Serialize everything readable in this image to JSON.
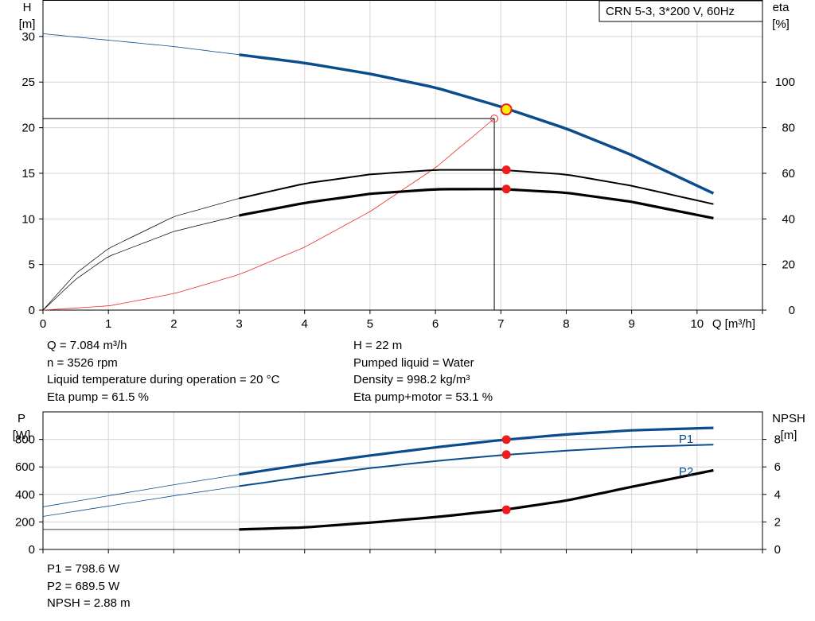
{
  "chart_data": [
    {
      "type": "line",
      "title": "CRN 5-3, 3*200 V, 60Hz",
      "xlabel": "Q [m³/h]",
      "ylabel_left": [
        "H",
        "[m]"
      ],
      "ylabel_right": [
        "eta",
        "[%]"
      ],
      "xlim": [
        0,
        11
      ],
      "ylim_left": [
        0,
        34
      ],
      "ylim_right": [
        0,
        136
      ],
      "x_ticks": [
        0,
        1,
        2,
        3,
        4,
        5,
        6,
        7,
        8,
        9,
        10
      ],
      "y_ticks_left": [
        0,
        5,
        10,
        15,
        20,
        25,
        30
      ],
      "y_ticks_right": [
        0,
        20,
        40,
        60,
        80,
        100
      ],
      "grid": true,
      "colors": {
        "head": "#0b4c8c",
        "eta": "#000000",
        "system": "#e8302a",
        "marker": "#ee1c1c",
        "duty_marker": "#ffee00"
      },
      "series": [
        {
          "axis": "left",
          "points": [
            [
              0,
              30.3
            ],
            [
              1,
              29.6
            ],
            [
              2,
              28.9
            ],
            [
              3,
              28.0
            ],
            [
              4,
              27.1
            ],
            [
              5,
              25.9
            ],
            [
              6,
              24.4
            ],
            [
              7,
              22.3
            ],
            [
              8,
              19.9
            ],
            [
              9,
              17.0
            ],
            [
              10.25,
              12.8
            ]
          ]
        },
        {
          "axis": "right",
          "points": [
            [
              0,
              0
            ],
            [
              0.5,
              16
            ],
            [
              1,
              27
            ],
            [
              2,
              41
            ],
            [
              3,
              49
            ],
            [
              4,
              55.5
            ],
            [
              5,
              59.5
            ],
            [
              6,
              61.5
            ],
            [
              7,
              61.5
            ],
            [
              8,
              59.5
            ],
            [
              9,
              54.5
            ],
            [
              10.25,
              46.5
            ]
          ]
        },
        {
          "axis": "right",
          "points": [
            [
              0,
              0
            ],
            [
              0.5,
              13.5
            ],
            [
              1,
              23.5
            ],
            [
              2,
              34.5
            ],
            [
              3,
              41.5
            ],
            [
              4,
              47
            ],
            [
              5,
              51
            ],
            [
              6,
              53
            ],
            [
              7,
              53.1
            ],
            [
              8,
              51.5
            ],
            [
              9,
              47.5
            ],
            [
              10.25,
              40.3
            ]
          ]
        },
        {
          "axis": "left",
          "points": [
            [
              0,
              0
            ],
            [
              1,
              0.45
            ],
            [
              2,
              1.8
            ],
            [
              3,
              3.9
            ],
            [
              4,
              6.9
            ],
            [
              5,
              10.8
            ],
            [
              6,
              15.6
            ],
            [
              6.9,
              21.0
            ]
          ]
        }
      ],
      "duty_point": {
        "q": 7.084,
        "h": 22
      },
      "requested_point": {
        "q": 6.9,
        "h": 21
      },
      "eta_points": [
        61.5,
        53.1
      ]
    },
    {
      "type": "line",
      "ylabel_left": [
        "P",
        "[W]"
      ],
      "ylabel_right": [
        "NPSH",
        "[m]"
      ],
      "xlim": [
        0,
        11
      ],
      "ylim_left": [
        0,
        1000
      ],
      "ylim_right": [
        0,
        10
      ],
      "y_ticks_left": [
        0,
        200,
        400,
        600,
        800
      ],
      "y_ticks_right": [
        0,
        2,
        4,
        6,
        8
      ],
      "grid": true,
      "series": [
        {
          "name": "P1",
          "axis": "left",
          "points": [
            [
              0,
              310
            ],
            [
              1,
              390
            ],
            [
              2,
              470
            ],
            [
              3,
              545
            ],
            [
              4,
              618
            ],
            [
              5,
              683
            ],
            [
              6,
              742
            ],
            [
              7,
              795
            ],
            [
              8,
              836
            ],
            [
              9,
              866
            ],
            [
              10.25,
              884
            ]
          ]
        },
        {
          "name": "P2",
          "axis": "left",
          "points": [
            [
              0,
              240
            ],
            [
              1,
              315
            ],
            [
              2,
              390
            ],
            [
              3,
              460
            ],
            [
              4,
              528
            ],
            [
              5,
              591
            ],
            [
              6,
              643
            ],
            [
              7,
              685
            ],
            [
              8,
              718
            ],
            [
              9,
              745
            ],
            [
              10.25,
              762
            ]
          ]
        },
        {
          "axis": "right",
          "points": [
            [
              0,
              1.45
            ],
            [
              3,
              1.45
            ],
            [
              4,
              1.6
            ],
            [
              5,
              1.95
            ],
            [
              6,
              2.35
            ],
            [
              7,
              2.85
            ],
            [
              8,
              3.55
            ],
            [
              9,
              4.55
            ],
            [
              10.25,
              5.75
            ]
          ]
        }
      ],
      "duty_values": {
        "p1": 798.6,
        "p2": 689.5,
        "npsh": 2.88
      }
    }
  ],
  "info_top_left": [
    "Q = 7.084 m³/h",
    "n = 3526 rpm",
    "Liquid temperature during operation = 20 °C",
    "Eta pump = 61.5 %"
  ],
  "info_top_right": [
    "H = 22 m",
    "Pumped liquid = Water",
    "Density = 998.2 kg/m³",
    "Eta pump+motor = 53.1 %"
  ],
  "info_bottom": [
    "P1 = 798.6 W",
    "P2 = 689.5 W",
    "NPSH = 2.88 m"
  ]
}
